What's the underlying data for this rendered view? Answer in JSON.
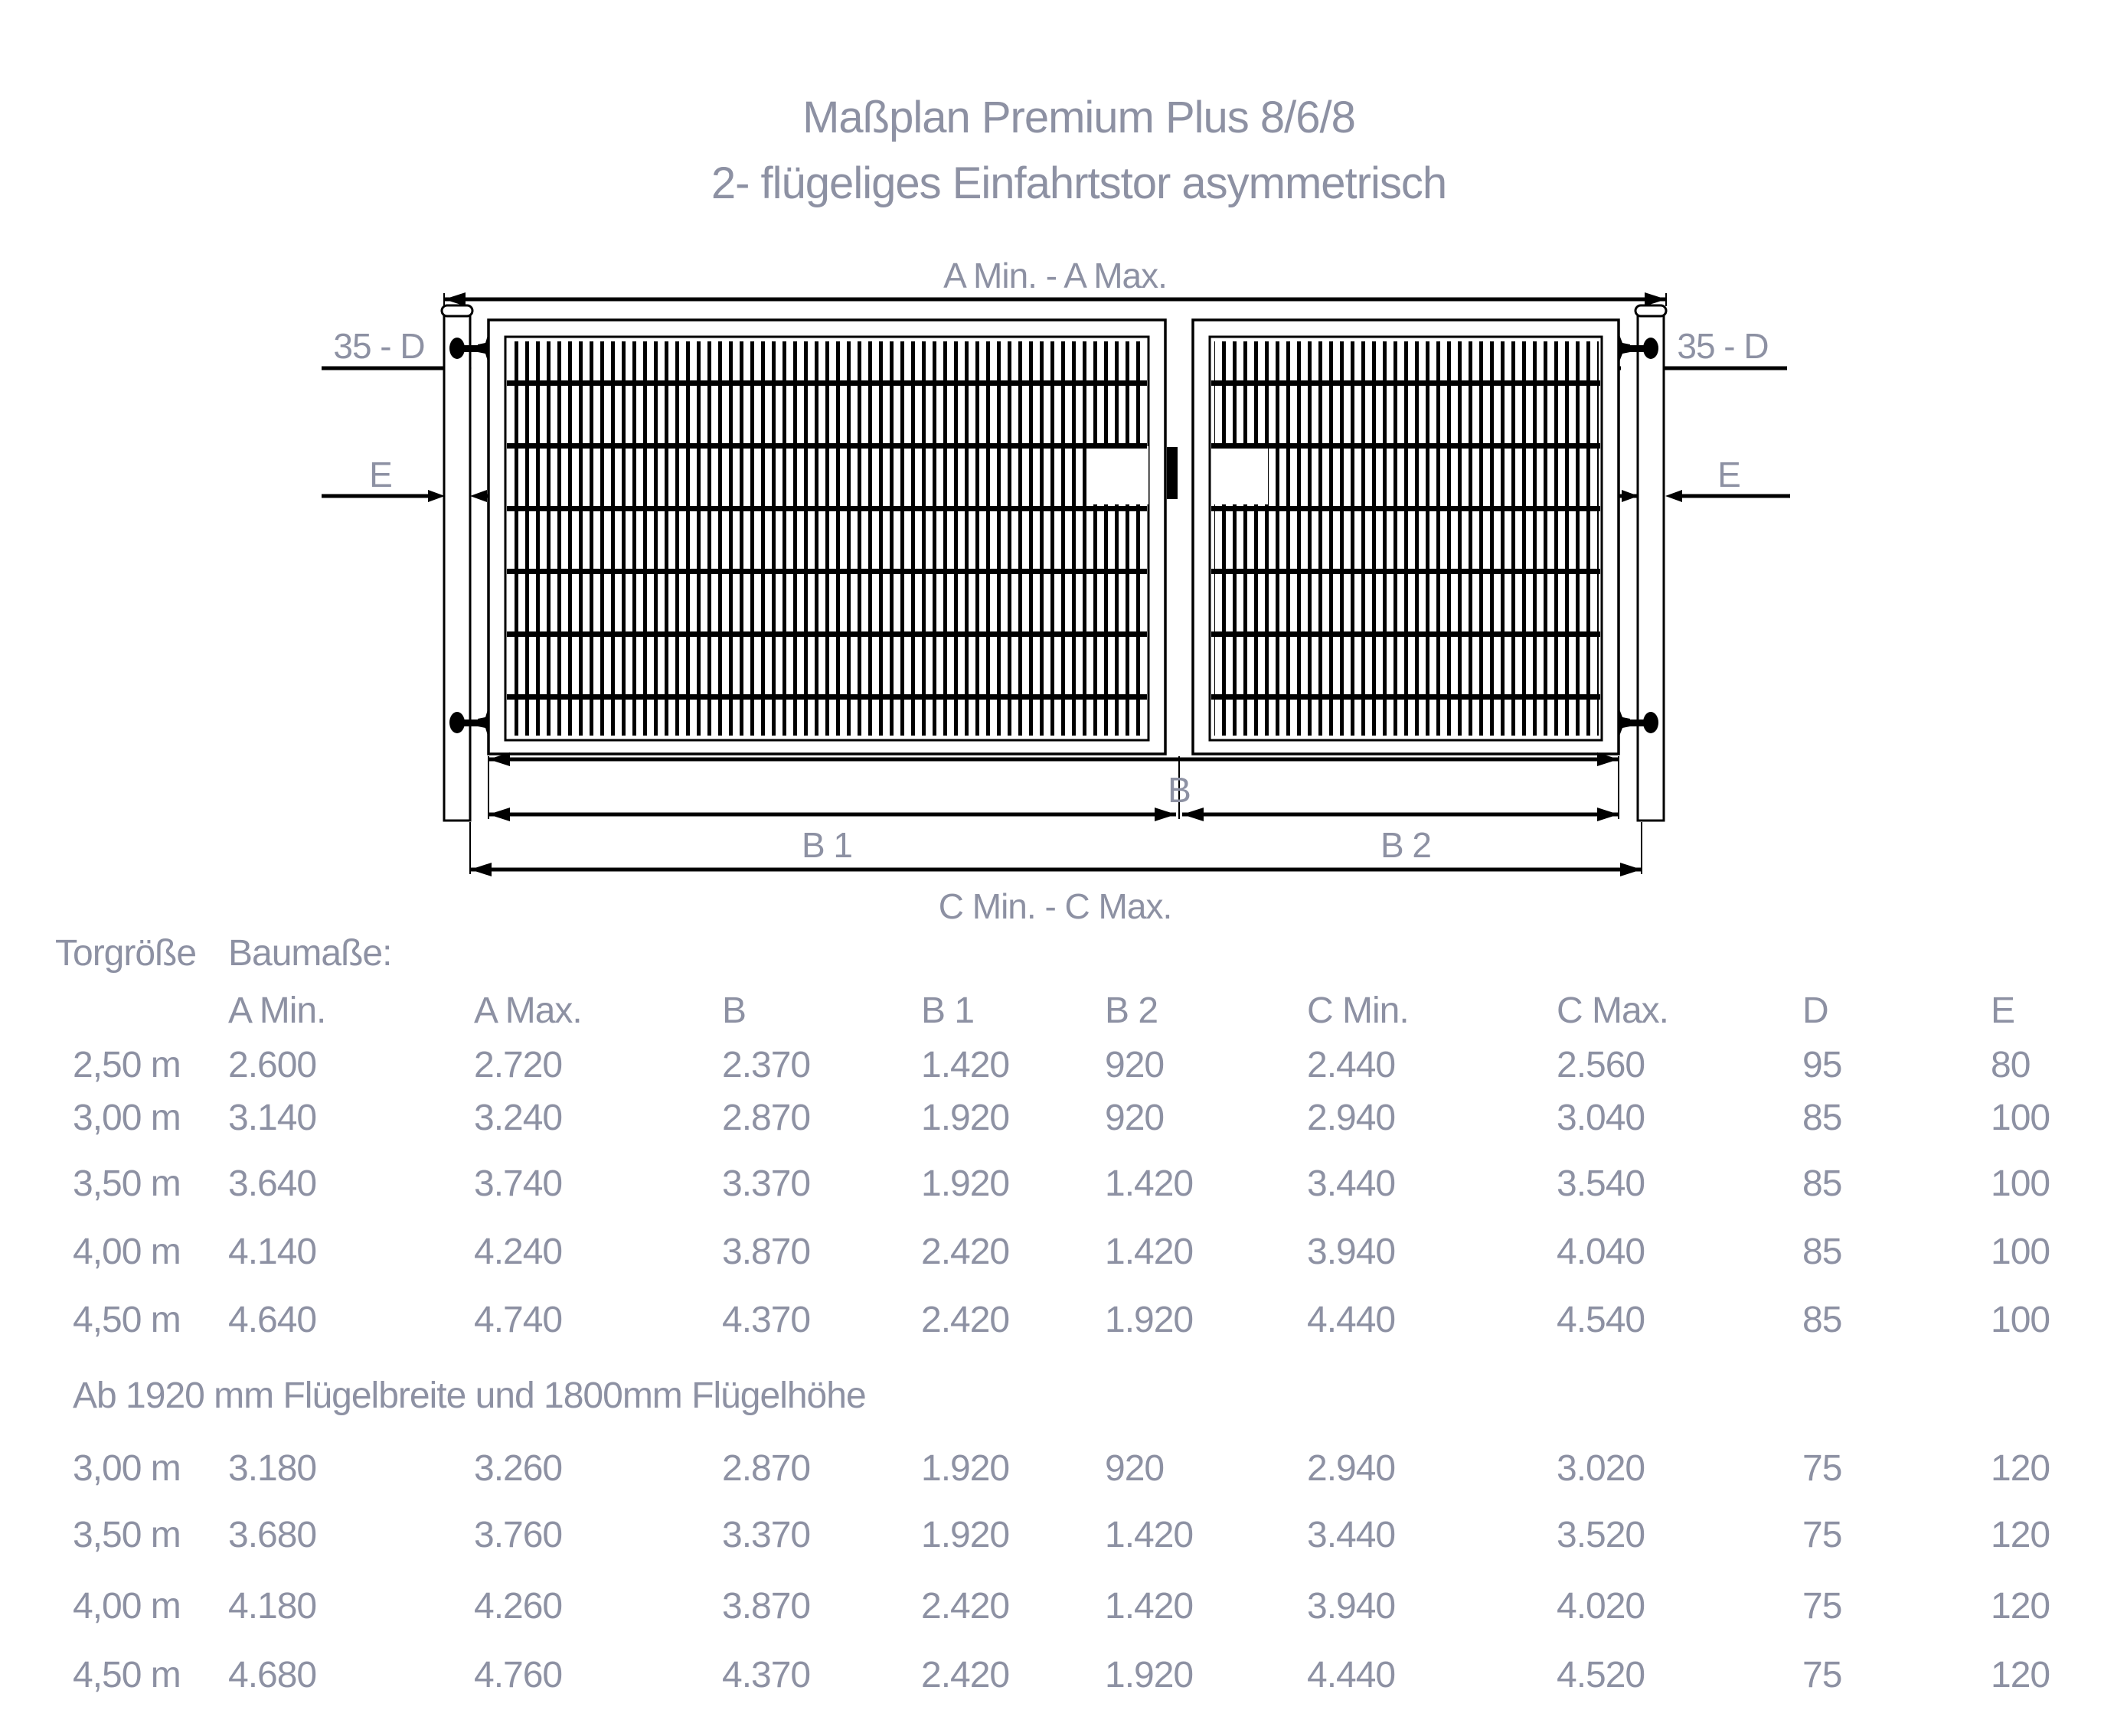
{
  "title": {
    "line1": "Maßplan Premium Plus 8/6/8",
    "line2": "2- flügeliges Einfahrtstor asymmetrisch"
  },
  "diagram": {
    "labels": {
      "a_span": "A Min. - A Max.",
      "d_left": "35 - D",
      "d_right": "35 - D",
      "e_left": "E",
      "e_right": "E",
      "b": "B",
      "b1": "B 1",
      "b2": "B 2",
      "c_span": "C Min. - C Max."
    }
  },
  "table": {
    "header_group_1": "Torgröße",
    "header_group_2": "Baumaße:",
    "measure_headers": [
      "A Min.",
      "A Max.",
      "B",
      "B 1",
      "B 2",
      "C Min.",
      "C Max.",
      "D",
      "E"
    ],
    "section1_rows": [
      [
        "2,50 m",
        "2.600",
        "2.720",
        "2.370",
        "1.420",
        "920",
        "2.440",
        "2.560",
        "95",
        "80"
      ],
      [
        "3,00 m",
        "3.140",
        "3.240",
        "2.870",
        "1.920",
        "920",
        "2.940",
        "3.040",
        "85",
        "100"
      ],
      [
        "3,50 m",
        "3.640",
        "3.740",
        "3.370",
        "1.920",
        "1.420",
        "3.440",
        "3.540",
        "85",
        "100"
      ],
      [
        "4,00 m",
        "4.140",
        "4.240",
        "3.870",
        "2.420",
        "1.420",
        "3.940",
        "4.040",
        "85",
        "100"
      ],
      [
        "4,50 m",
        "4.640",
        "4.740",
        "4.370",
        "2.420",
        "1.920",
        "4.440",
        "4.540",
        "85",
        "100"
      ]
    ],
    "note": "Ab 1920 mm Flügelbreite und 1800mm Flügelhöhe",
    "section2_rows": [
      [
        "3,00 m",
        "3.180",
        "3.260",
        "2.870",
        "1.920",
        "920",
        "2.940",
        "3.020",
        "75",
        "120"
      ],
      [
        "3,50 m",
        "3.680",
        "3.760",
        "3.370",
        "1.920",
        "1.420",
        "3.440",
        "3.520",
        "75",
        "120"
      ],
      [
        "4,00 m",
        "4.180",
        "4.260",
        "3.870",
        "2.420",
        "1.420",
        "3.940",
        "4.020",
        "75",
        "120"
      ],
      [
        "4,50 m",
        "4.680",
        "4.760",
        "4.370",
        "2.420",
        "1.920",
        "4.440",
        "4.520",
        "75",
        "120"
      ]
    ]
  },
  "colors": {
    "label_text": "#8d91a3",
    "linework": "#000000"
  }
}
